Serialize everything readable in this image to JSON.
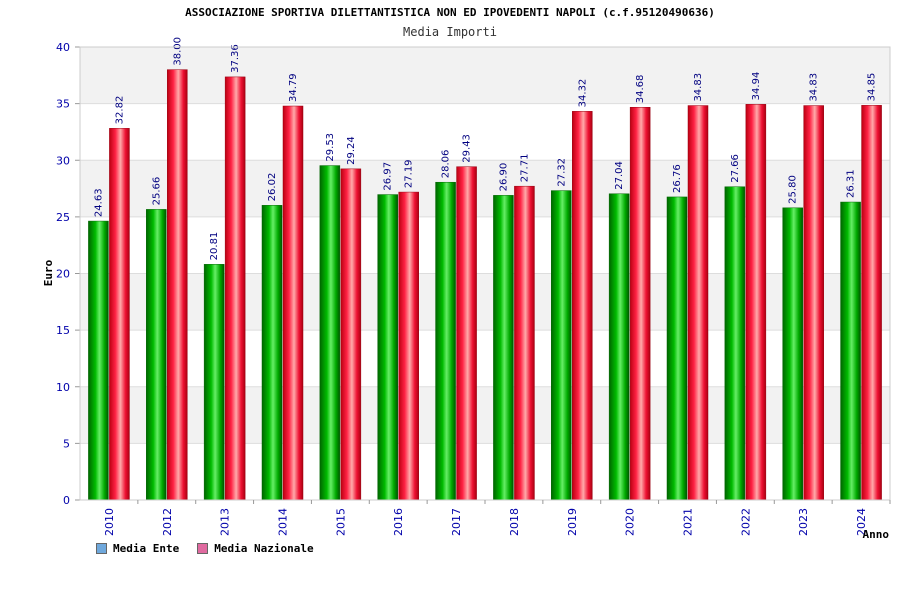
{
  "header": {
    "title": "ASSOCIAZIONE SPORTIVA DILETTANTISTICA NON ED IPOVEDENTI NAPOLI (c.f.95120490636)",
    "subtitle": "Media Importi"
  },
  "legend": [
    {
      "label": "Media Ente",
      "color": "#6fa8dc"
    },
    {
      "label": "Media Nazionale",
      "color": "#e06aa0"
    }
  ],
  "colors": {
    "ente_bar": "#00aa00",
    "nazionale_bar": "#ee1133",
    "band_gray": "#f2f2f2",
    "grid": "#dddddd"
  },
  "chart_data": {
    "type": "bar",
    "title": "ASSOCIAZIONE SPORTIVA DILETTANTISTICA NON ED IPOVEDENTI NAPOLI (c.f.95120490636)",
    "subtitle": "Media Importi",
    "xlabel": "Anno",
    "ylabel": "Euro",
    "ylim": [
      0,
      40
    ],
    "yticks": [
      0,
      5,
      10,
      15,
      20,
      25,
      30,
      35,
      40
    ],
    "grid": true,
    "legend_position": "bottom-left",
    "categories": [
      "2010",
      "2012",
      "2013",
      "2014",
      "2015",
      "2016",
      "2017",
      "2018",
      "2019",
      "2020",
      "2021",
      "2022",
      "2023",
      "2024"
    ],
    "series": [
      {
        "name": "Media Ente",
        "values": [
          24.63,
          25.66,
          20.81,
          26.02,
          29.53,
          26.97,
          28.06,
          26.9,
          27.32,
          27.04,
          26.76,
          27.66,
          25.8,
          26.31
        ],
        "labels": [
          "24.63",
          "25.66",
          "20.81",
          "26.02",
          "29.53",
          "26.97",
          "28.06",
          "26.90",
          "27.32",
          "27.04",
          "26.76",
          "27.66",
          "25.80",
          "26.31"
        ]
      },
      {
        "name": "Media Nazionale",
        "values": [
          32.82,
          38.0,
          37.36,
          34.79,
          29.24,
          27.19,
          29.43,
          27.71,
          34.32,
          34.68,
          34.83,
          34.94,
          34.83,
          34.85
        ],
        "labels": [
          "32.82",
          "38.00",
          "37.36",
          "34.79",
          "29.24",
          "27.19",
          "29.43",
          "27.71",
          "34.32",
          "34.68",
          "34.83",
          "34.94",
          "34.83",
          "34.85"
        ]
      }
    ]
  }
}
